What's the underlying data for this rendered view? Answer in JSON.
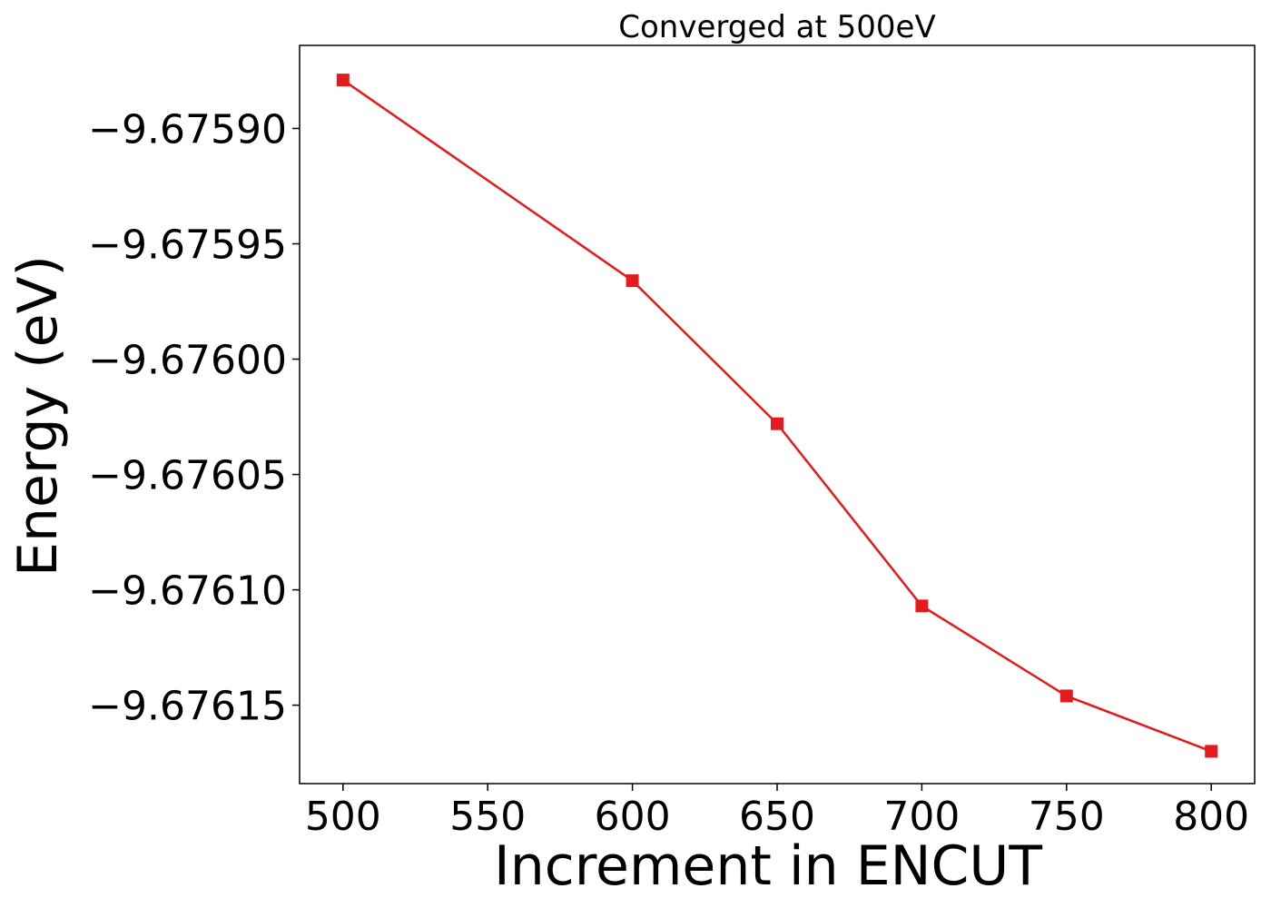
{
  "chart_data": {
    "type": "line",
    "title": "Converged at 500eV",
    "xlabel": "Increment in ENCUT",
    "ylabel": "Energy (eV)",
    "x": [
      500,
      600,
      650,
      700,
      750,
      800
    ],
    "series": [
      {
        "values": [
          -9.675879,
          -9.675966,
          -9.676028,
          -9.676107,
          -9.676146,
          -9.67617
        ],
        "color": "#e41a1c",
        "marker": "square"
      }
    ],
    "xlim": [
      485,
      815
    ],
    "ylim": [
      -9.676184,
      -9.675864
    ],
    "xticks": [
      500,
      550,
      600,
      650,
      700,
      750,
      800
    ],
    "xtick_labels": [
      "500",
      "550",
      "600",
      "650",
      "700",
      "750",
      "800"
    ],
    "yticks": [
      -9.6759,
      -9.67595,
      -9.676,
      -9.67605,
      -9.6761,
      -9.67615
    ],
    "ytick_labels": [
      "−9.67590",
      "−9.67595",
      "−9.67600",
      "−9.67605",
      "−9.67610",
      "−9.67615"
    ],
    "grid": false,
    "legend": "none"
  }
}
